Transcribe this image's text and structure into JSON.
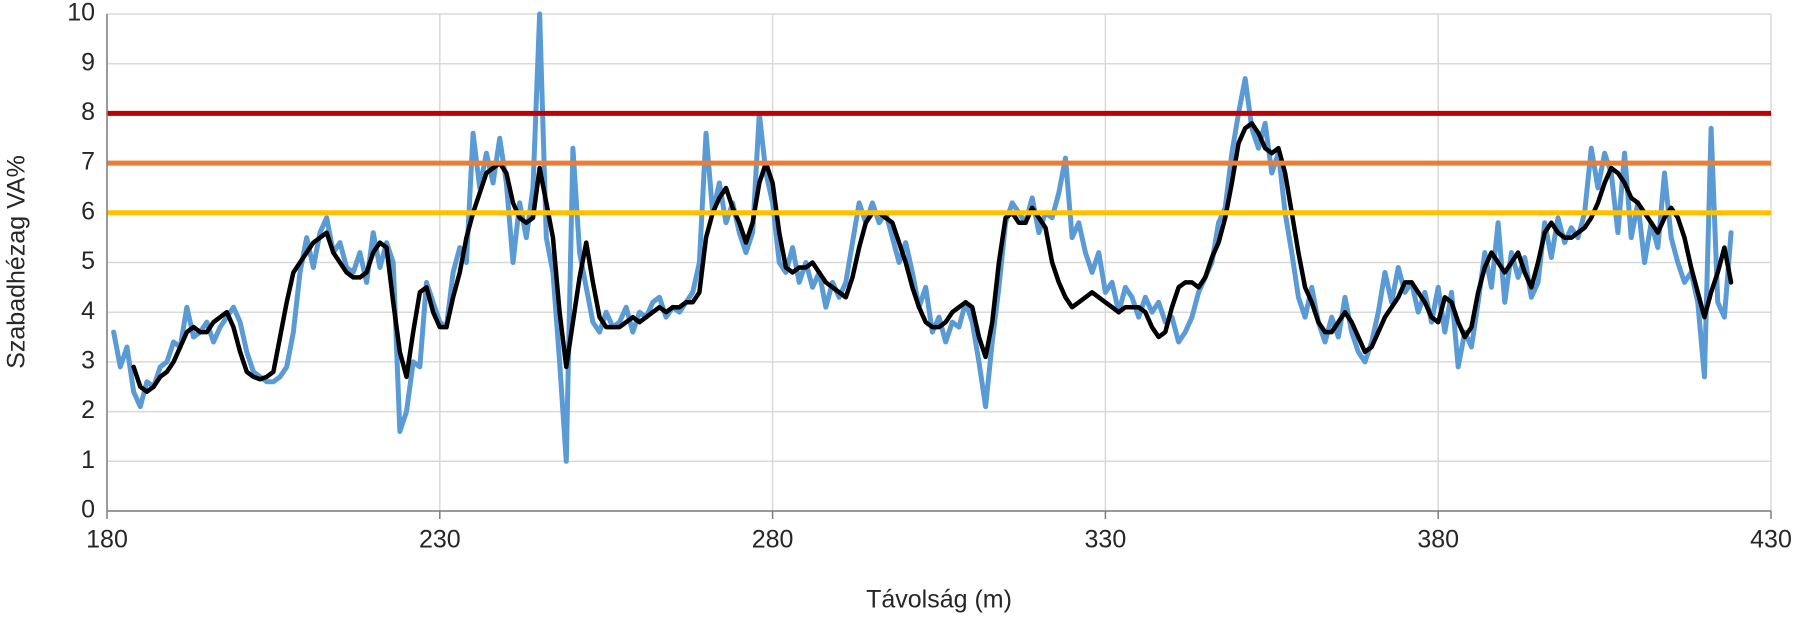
{
  "chart_data": {
    "type": "line",
    "xlabel": "Távolság (m)",
    "ylabel": "Szabadhézag VA%",
    "xlim": [
      180,
      430
    ],
    "xticks": [
      180,
      230,
      280,
      330,
      380,
      430
    ],
    "ylim": [
      0,
      10
    ],
    "yticks": [
      0,
      1,
      2,
      3,
      4,
      5,
      6,
      7,
      8,
      9,
      10
    ],
    "grid": true,
    "x": [
      181,
      182,
      183,
      184,
      185,
      186,
      187,
      188,
      189,
      190,
      191,
      192,
      193,
      194,
      195,
      196,
      197,
      198,
      199,
      200,
      201,
      202,
      203,
      204,
      205,
      206,
      207,
      208,
      209,
      210,
      211,
      212,
      213,
      214,
      215,
      216,
      217,
      218,
      219,
      220,
      221,
      222,
      223,
      224,
      225,
      226,
      227,
      228,
      229,
      230,
      231,
      232,
      233,
      234,
      235,
      236,
      237,
      238,
      239,
      240,
      241,
      242,
      243,
      244,
      245,
      246,
      247,
      248,
      249,
      250,
      251,
      252,
      253,
      254,
      255,
      256,
      257,
      258,
      259,
      260,
      261,
      262,
      263,
      264,
      265,
      266,
      267,
      268,
      269,
      270,
      271,
      272,
      273,
      274,
      275,
      276,
      277,
      278,
      279,
      280,
      281,
      282,
      283,
      284,
      285,
      286,
      287,
      288,
      289,
      290,
      291,
      292,
      293,
      294,
      295,
      296,
      297,
      298,
      299,
      300,
      301,
      302,
      303,
      304,
      305,
      306,
      307,
      308,
      309,
      310,
      311,
      312,
      313,
      314,
      315,
      316,
      317,
      318,
      319,
      320,
      321,
      322,
      323,
      324,
      325,
      326,
      327,
      328,
      329,
      330,
      331,
      332,
      333,
      334,
      335,
      336,
      337,
      338,
      339,
      340,
      341,
      342,
      343,
      344,
      345,
      346,
      347,
      348,
      349,
      350,
      351,
      352,
      353,
      354,
      355,
      356,
      357,
      358,
      359,
      360,
      361,
      362,
      363,
      364,
      365,
      366,
      367,
      368,
      369,
      370,
      371,
      372,
      373,
      374,
      375,
      376,
      377,
      378,
      379,
      380,
      381,
      382,
      383,
      384,
      385,
      386,
      387,
      388,
      389,
      390,
      391,
      392,
      393,
      394,
      395,
      396,
      397,
      398,
      399,
      400,
      401,
      402,
      403,
      404,
      405,
      406,
      407,
      408,
      409,
      410,
      411,
      412,
      413,
      414,
      415,
      416,
      417,
      418,
      419,
      420,
      421,
      422,
      423,
      424
    ],
    "series": [
      {
        "color": "#5b9bd5",
        "width": 5,
        "values": [
          3.6,
          2.9,
          3.3,
          2.4,
          2.1,
          2.6,
          2.5,
          2.9,
          3.0,
          3.4,
          3.3,
          4.1,
          3.5,
          3.6,
          3.8,
          3.4,
          3.7,
          3.9,
          4.1,
          3.8,
          3.2,
          2.8,
          2.7,
          2.6,
          2.6,
          2.7,
          2.9,
          3.6,
          4.8,
          5.5,
          4.9,
          5.6,
          5.9,
          5.2,
          5.4,
          4.9,
          4.8,
          5.2,
          4.6,
          5.6,
          4.9,
          5.4,
          5.0,
          1.6,
          2.0,
          3.0,
          2.9,
          4.6,
          4.2,
          3.8,
          3.7,
          4.8,
          5.3,
          5.0,
          7.6,
          6.5,
          7.2,
          6.6,
          7.5,
          6.6,
          5.0,
          6.2,
          5.5,
          6.5,
          10,
          5.5,
          4.8,
          3.0,
          1.0,
          7.3,
          5.2,
          4.5,
          3.8,
          3.6,
          4.0,
          3.7,
          3.8,
          4.1,
          3.6,
          4.0,
          3.9,
          4.2,
          4.3,
          3.9,
          4.1,
          4.0,
          4.2,
          4.4,
          5.0,
          7.6,
          6.0,
          6.6,
          5.8,
          6.2,
          5.6,
          5.2,
          5.6,
          8.0,
          6.8,
          6.2,
          5.0,
          4.8,
          5.3,
          4.6,
          5.0,
          4.5,
          4.8,
          4.1,
          4.6,
          4.3,
          4.6,
          5.4,
          6.2,
          5.8,
          6.2,
          5.8,
          6.0,
          5.5,
          5.0,
          5.4,
          4.8,
          4.1,
          4.5,
          3.6,
          3.9,
          3.4,
          3.8,
          3.7,
          4.2,
          3.8,
          3.0,
          2.1,
          3.4,
          4.5,
          5.8,
          6.2,
          6.0,
          5.8,
          6.3,
          5.6,
          6.0,
          5.9,
          6.4,
          7.1,
          5.5,
          5.8,
          5.2,
          4.8,
          5.2,
          4.4,
          4.6,
          4.0,
          4.5,
          4.3,
          3.9,
          4.3,
          4.0,
          4.2,
          3.8,
          3.9,
          3.4,
          3.6,
          3.9,
          4.4,
          4.7,
          5.0,
          5.8,
          6.1,
          7.2,
          8.0,
          8.7,
          7.7,
          7.3,
          7.8,
          6.8,
          7.2,
          6.0,
          5.2,
          4.3,
          3.9,
          4.5,
          3.8,
          3.4,
          3.9,
          3.5,
          4.3,
          3.6,
          3.2,
          3.0,
          3.4,
          4.0,
          4.8,
          4.2,
          4.9,
          4.4,
          4.6,
          4.0,
          4.4,
          3.8,
          4.5,
          3.6,
          4.4,
          2.9,
          3.6,
          3.3,
          4.2,
          5.2,
          4.5,
          5.8,
          4.2,
          5.2,
          4.7,
          5.1,
          4.3,
          4.6,
          5.8,
          5.1,
          5.9,
          5.4,
          5.7,
          5.5,
          6.0,
          7.3,
          6.5,
          7.2,
          6.8,
          5.6,
          7.2,
          5.5,
          6.2,
          5.0,
          5.8,
          5.3,
          6.8,
          5.5,
          5.0,
          4.6,
          4.8,
          4.2,
          2.7,
          7.7,
          4.2,
          3.9,
          5.6
        ]
      },
      {
        "color": "#000000",
        "width": 4.5,
        "values": [
          null,
          null,
          null,
          2.9,
          2.5,
          2.4,
          2.5,
          2.7,
          2.8,
          3.0,
          3.3,
          3.6,
          3.7,
          3.6,
          3.6,
          3.8,
          3.9,
          4.0,
          3.7,
          3.2,
          2.8,
          2.7,
          2.65,
          2.7,
          2.8,
          3.5,
          4.2,
          4.8,
          5.0,
          5.2,
          5.4,
          5.5,
          5.6,
          5.2,
          5.0,
          4.8,
          4.7,
          4.7,
          4.8,
          5.2,
          5.4,
          5.3,
          4.2,
          3.2,
          2.7,
          3.6,
          4.4,
          4.5,
          4.0,
          3.7,
          3.7,
          4.3,
          4.8,
          5.5,
          6.0,
          6.4,
          6.8,
          6.9,
          7.0,
          6.8,
          6.2,
          5.9,
          5.8,
          5.9,
          6.9,
          6.2,
          5.5,
          4.0,
          2.9,
          3.8,
          4.7,
          5.4,
          4.6,
          3.9,
          3.7,
          3.7,
          3.7,
          3.8,
          3.9,
          3.8,
          3.9,
          4.0,
          4.1,
          4.0,
          4.1,
          4.1,
          4.2,
          4.2,
          4.4,
          5.5,
          6.0,
          6.3,
          6.5,
          6.1,
          5.8,
          5.4,
          5.8,
          6.6,
          7.0,
          6.6,
          5.6,
          4.9,
          4.8,
          4.9,
          4.9,
          5.0,
          4.8,
          4.6,
          4.5,
          4.4,
          4.3,
          4.7,
          5.3,
          5.8,
          6.0,
          6.0,
          5.9,
          5.8,
          5.4,
          5.0,
          4.5,
          4.1,
          3.8,
          3.7,
          3.7,
          3.8,
          4.0,
          4.1,
          4.2,
          4.1,
          3.5,
          3.1,
          3.8,
          5.0,
          5.9,
          6.0,
          5.8,
          5.8,
          6.1,
          5.9,
          5.7,
          5.0,
          4.6,
          4.3,
          4.1,
          4.2,
          4.3,
          4.4,
          4.3,
          4.2,
          4.1,
          4.0,
          4.1,
          4.1,
          4.1,
          4.0,
          3.7,
          3.5,
          3.6,
          4.1,
          4.5,
          4.6,
          4.6,
          4.5,
          4.7,
          5.1,
          5.4,
          5.9,
          6.6,
          7.4,
          7.7,
          7.8,
          7.6,
          7.3,
          7.2,
          7.3,
          6.8,
          6.0,
          5.2,
          4.5,
          4.2,
          3.8,
          3.6,
          3.6,
          3.8,
          4.0,
          3.8,
          3.5,
          3.2,
          3.3,
          3.6,
          3.9,
          4.1,
          4.3,
          4.6,
          4.6,
          4.4,
          4.2,
          3.9,
          3.8,
          4.3,
          4.2,
          3.8,
          3.5,
          3.7,
          4.4,
          4.9,
          5.2,
          5.0,
          4.8,
          5.0,
          5.2,
          4.8,
          4.5,
          5.0,
          5.6,
          5.8,
          5.6,
          5.5,
          5.5,
          5.6,
          5.7,
          5.9,
          6.2,
          6.6,
          6.9,
          6.8,
          6.6,
          6.3,
          6.2,
          6.0,
          5.8,
          5.6,
          5.9,
          6.1,
          5.9,
          5.5,
          4.9,
          4.4,
          3.9,
          4.4,
          4.8,
          5.3,
          4.6
        ]
      }
    ],
    "reference_lines": [
      {
        "value": 8,
        "color": "#c00000"
      },
      {
        "value": 7,
        "color": "#ed7d31"
      },
      {
        "value": 6,
        "color": "#ffc000"
      }
    ]
  }
}
